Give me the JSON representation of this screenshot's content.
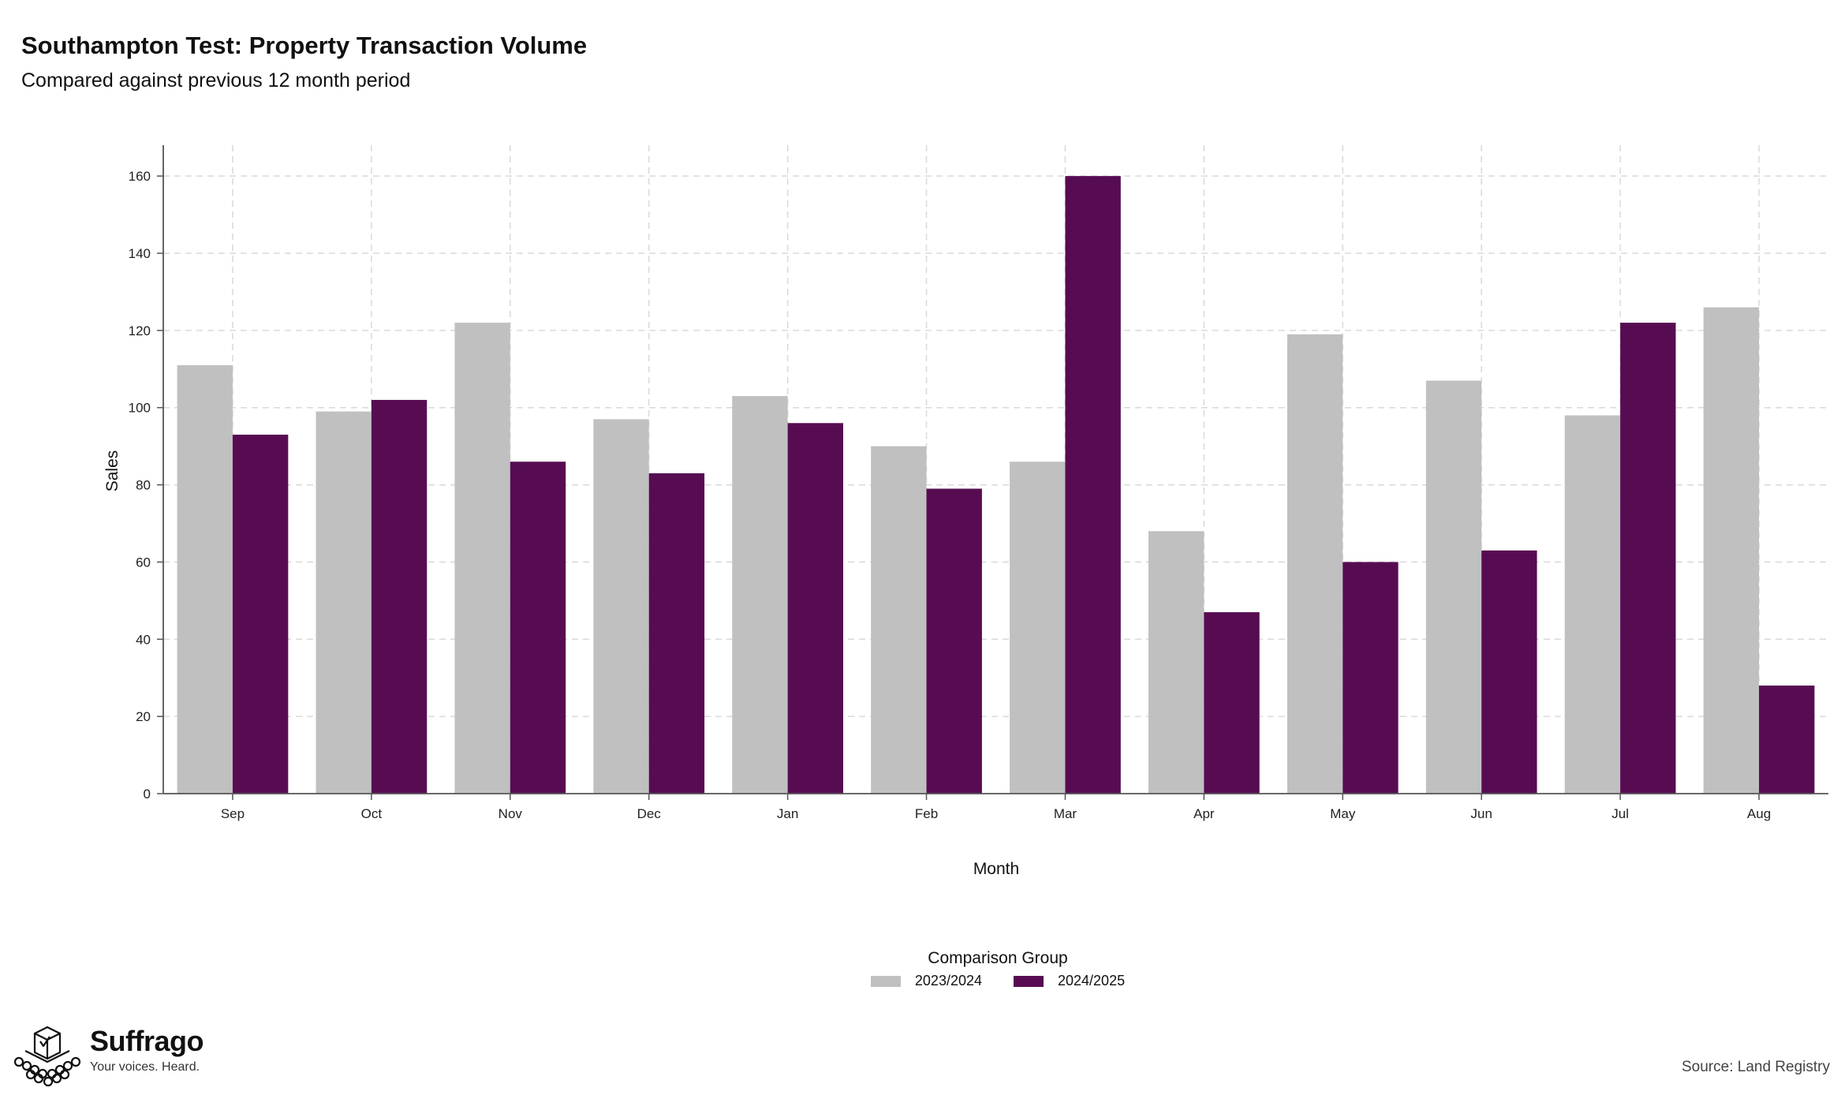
{
  "chart_data": {
    "type": "bar",
    "title": "Southampton Test: Property Transaction Volume",
    "subtitle": "Compared against previous 12 month period",
    "xlabel": "Month",
    "ylabel": "Sales",
    "categories": [
      "Sep",
      "Oct",
      "Nov",
      "Dec",
      "Jan",
      "Feb",
      "Mar",
      "Apr",
      "May",
      "Jun",
      "Jul",
      "Aug"
    ],
    "series": [
      {
        "name": "2023/2024",
        "color": "#c0c0c0",
        "values": [
          111,
          99,
          122,
          97,
          103,
          90,
          86,
          68,
          119,
          107,
          98,
          126
        ]
      },
      {
        "name": "2024/2025",
        "color": "#570c52",
        "values": [
          93,
          102,
          86,
          83,
          96,
          79,
          160,
          47,
          60,
          63,
          122,
          28
        ]
      }
    ],
    "ylim": [
      0,
      168
    ],
    "yticks": [
      0,
      20,
      40,
      60,
      80,
      100,
      120,
      140,
      160
    ],
    "grid": true,
    "legend_title": "Comparison Group",
    "legend_position": "bottom"
  },
  "footer": {
    "brand_name": "Suffrago",
    "brand_tagline": "Your voices. Heard.",
    "source": "Source: Land Registry",
    "logo_icon": "ballot-box-icon"
  }
}
